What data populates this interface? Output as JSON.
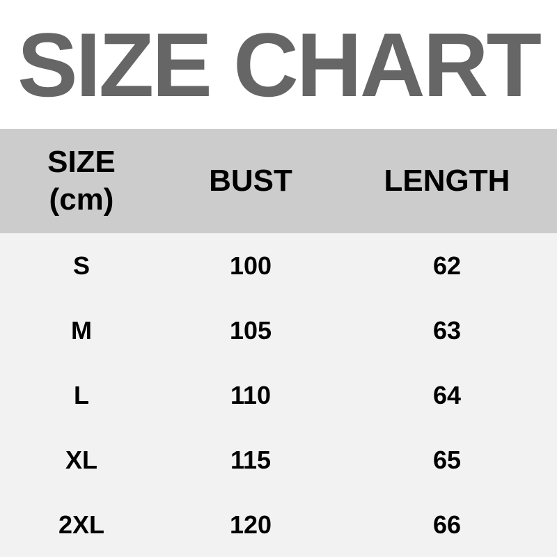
{
  "title": "SIZE CHART",
  "colors": {
    "title": "#666666",
    "header_bg": "#cccccc",
    "body_bg": "#f2f2f2",
    "text": "#000000"
  },
  "table": {
    "headers": [
      "SIZE",
      "(cm)",
      "BUST",
      "LENGTH"
    ],
    "rows": [
      [
        "S",
        "100",
        "62"
      ],
      [
        "M",
        "105",
        "63"
      ],
      [
        "L",
        "110",
        "64"
      ],
      [
        "XL",
        "115",
        "65"
      ],
      [
        "2XL",
        "120",
        "66"
      ]
    ]
  }
}
